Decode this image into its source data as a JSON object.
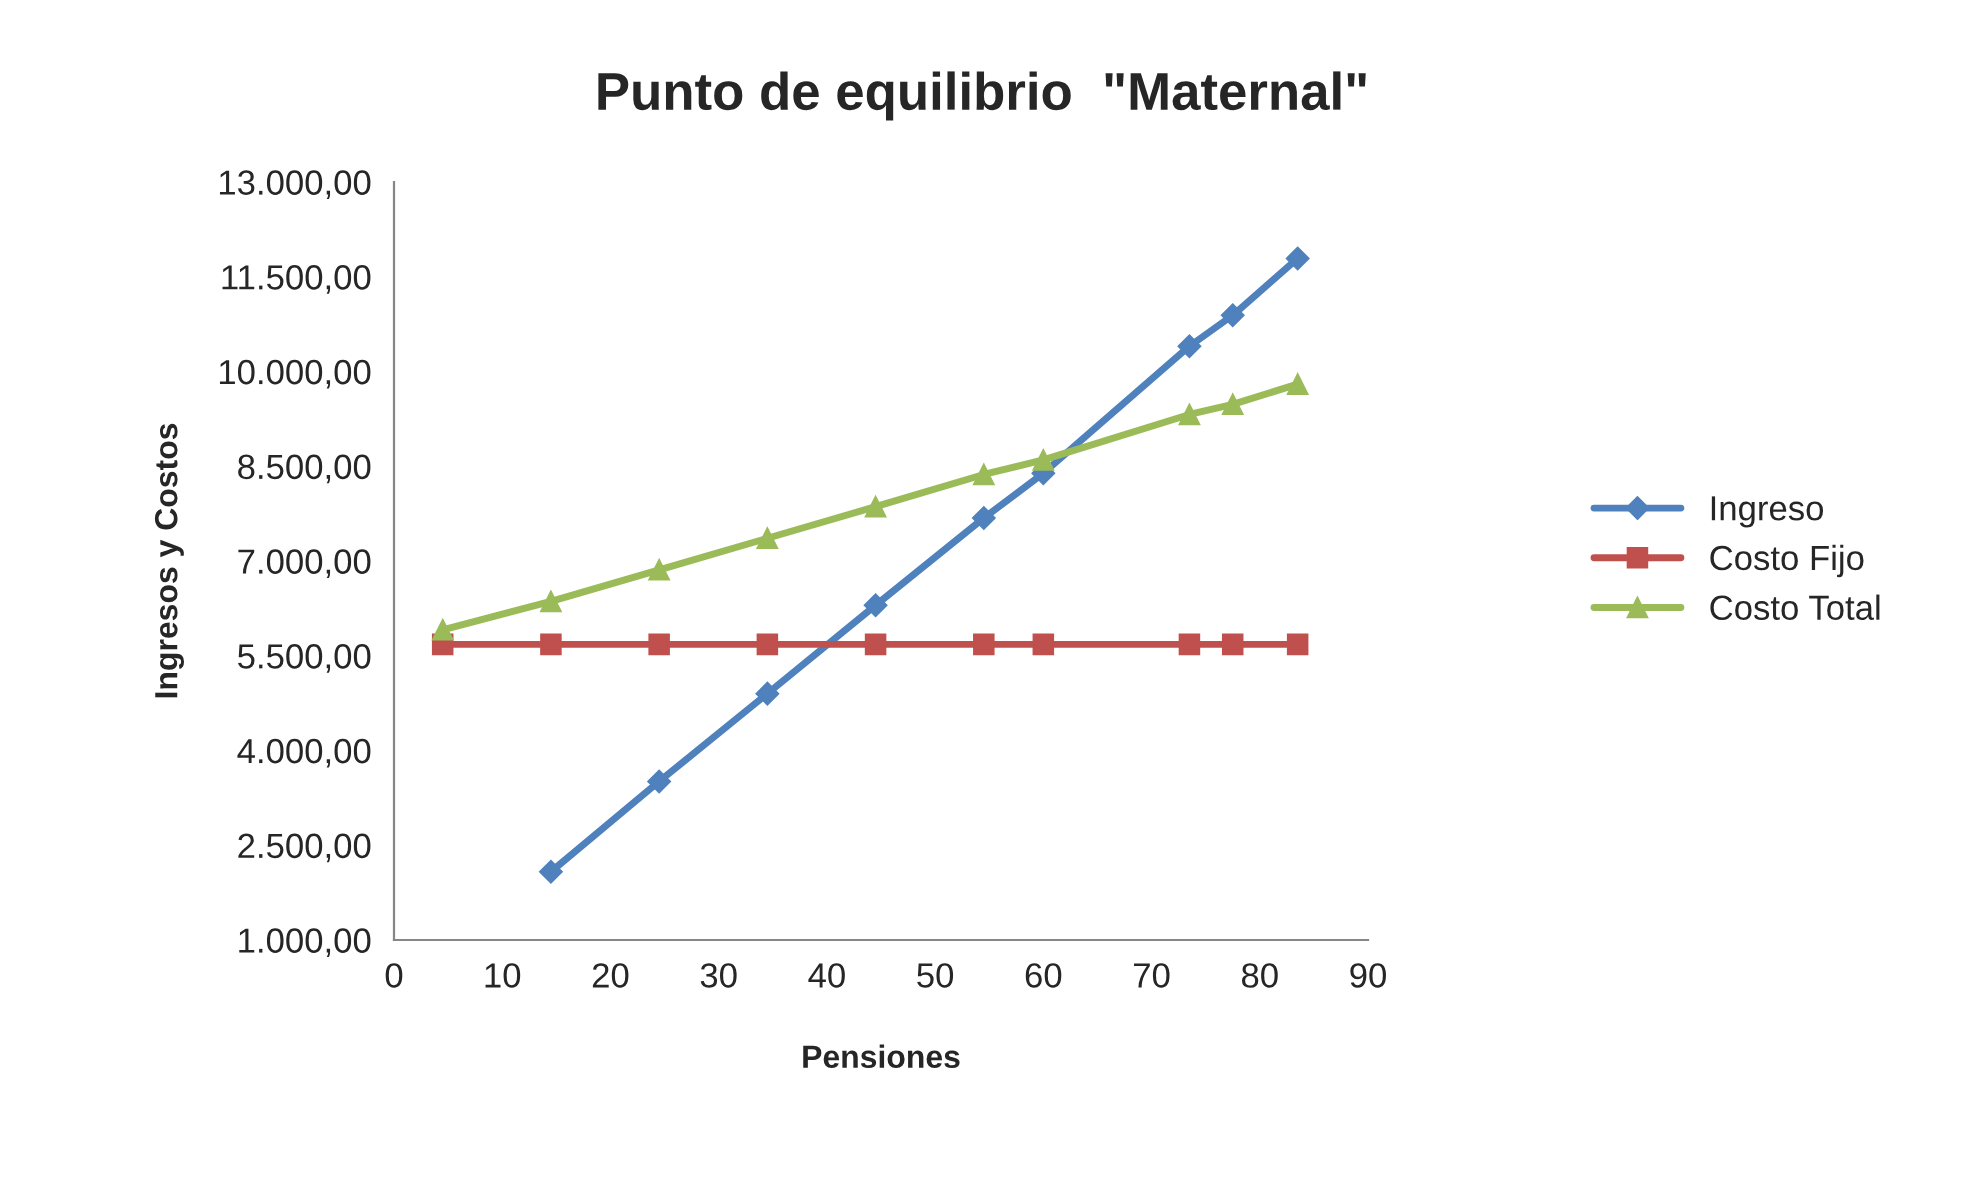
{
  "chart_data": {
    "type": "line",
    "title": "Punto de equilibrio  \"Maternal\"",
    "xlabel": "Pensiones",
    "ylabel": "Ingresos y Costos",
    "x": [
      4.5,
      14.5,
      24.5,
      34.5,
      44.5,
      54.5,
      60,
      73.5,
      77.5,
      83.5
    ],
    "series": [
      {
        "name": "Ingreso",
        "color": "#4f81bd",
        "marker": "diamond",
        "values": [
          null,
          2080,
          3510,
          4900,
          6300,
          7680,
          8390,
          10400,
          10890,
          11790
        ]
      },
      {
        "name": "Costo Fijo",
        "color": "#c0504d",
        "marker": "square",
        "values": [
          5680,
          5680,
          5680,
          5680,
          5680,
          5680,
          5680,
          5680,
          5680,
          5680
        ]
      },
      {
        "name": "Costo Total",
        "color": "#9bbb59",
        "marker": "triangle",
        "values": [
          5910,
          6360,
          6860,
          7360,
          7860,
          8370,
          8600,
          9320,
          9480,
          9800
        ]
      }
    ],
    "xlim": [
      0,
      90
    ],
    "xticks": [
      0,
      10,
      20,
      30,
      40,
      50,
      60,
      70,
      80,
      90
    ],
    "ylim": [
      1000,
      13000
    ],
    "yticks": [
      {
        "value": 1000,
        "label": "1.000,00"
      },
      {
        "value": 2500,
        "label": "2.500,00"
      },
      {
        "value": 4000,
        "label": "4.000,00"
      },
      {
        "value": 5500,
        "label": "5.500,00"
      },
      {
        "value": 7000,
        "label": "7.000,00"
      },
      {
        "value": 8500,
        "label": "8.500,00"
      },
      {
        "value": 10000,
        "label": "10.000,00"
      },
      {
        "value": 11500,
        "label": "11.500,00"
      },
      {
        "value": 13000,
        "label": "13.000,00"
      }
    ],
    "grid": false,
    "legend": "right",
    "line_style": "solid"
  }
}
